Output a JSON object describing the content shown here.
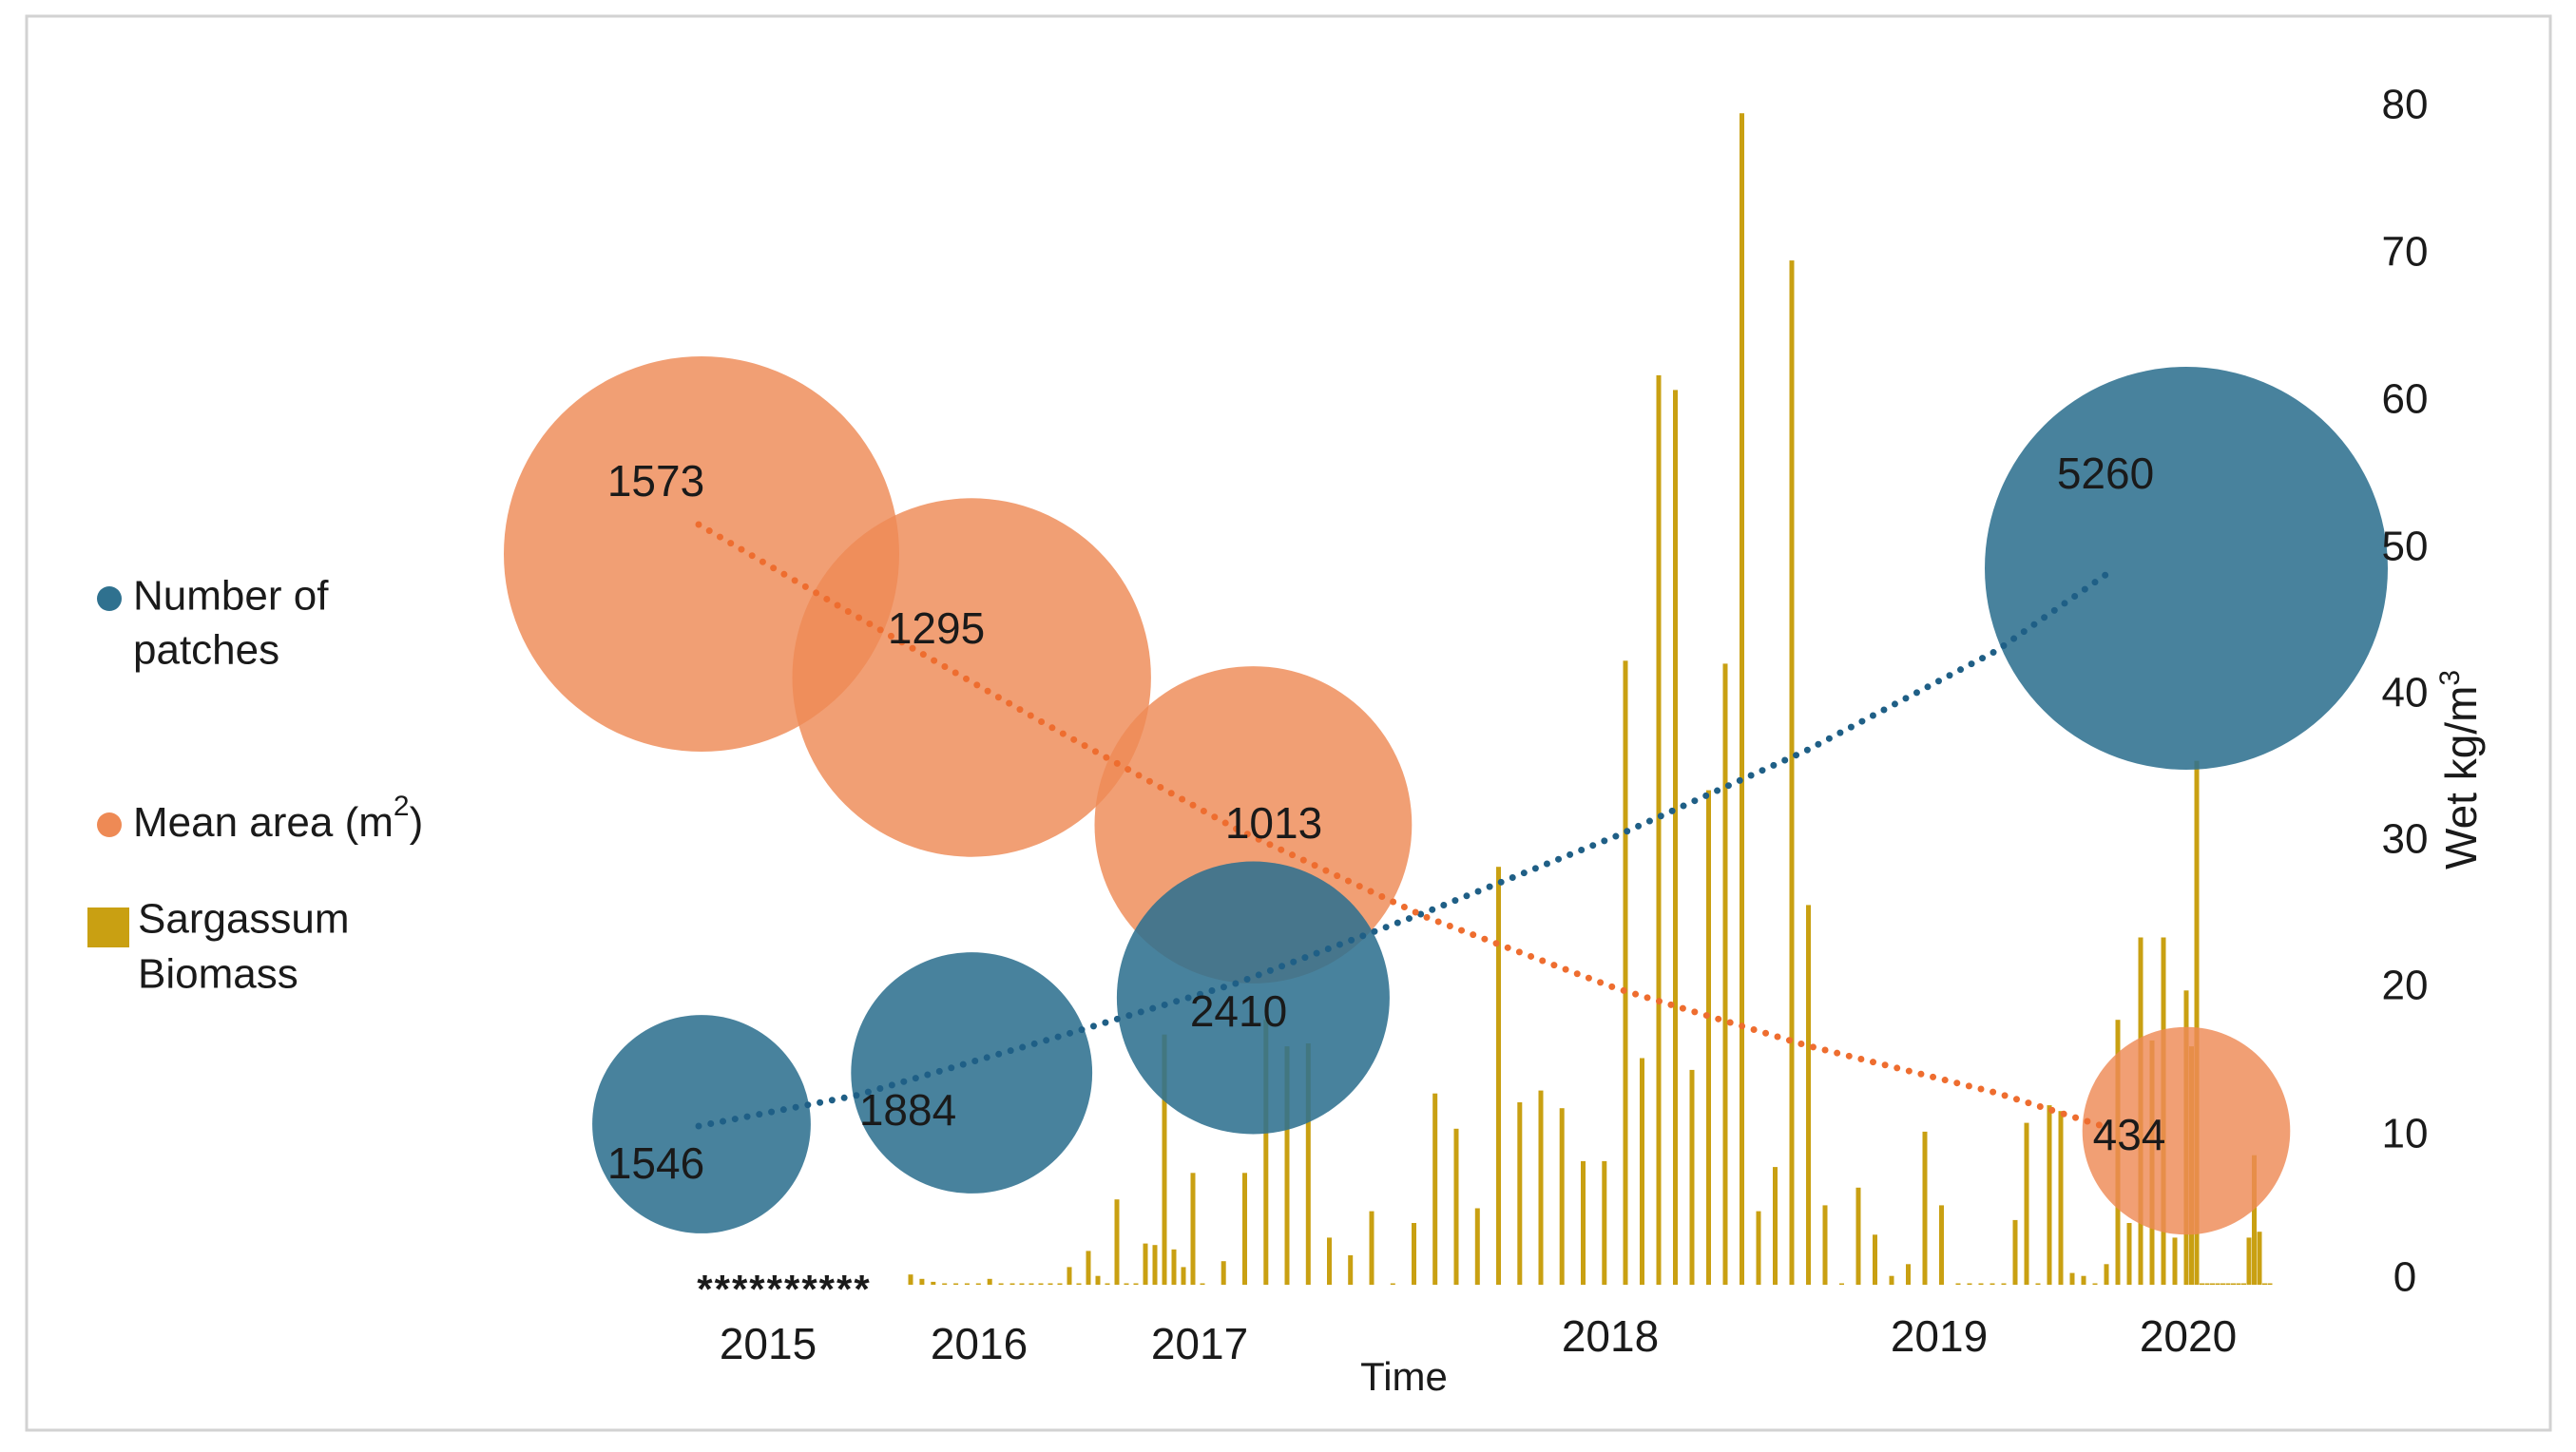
{
  "chart_data": {
    "type": "bubble-bar-combo",
    "xlabel": "Time",
    "ylabel_right": "Wet kg/m",
    "ylabel_right_sup": "3",
    "ylim_right": [
      0,
      80
    ],
    "y_ticks": [
      0,
      10,
      20,
      30,
      40,
      50,
      60,
      70,
      80
    ],
    "year_labels": [
      "2015",
      "2016",
      "2017",
      "2018",
      "2019",
      "2020"
    ],
    "missing_data_marker": "**********",
    "legend": {
      "patches_line1": "Number of",
      "patches_line2": "patches",
      "area_label": "Mean area (m",
      "area_sup": "2",
      "area_close": ")",
      "biomass_line1": "Sargassum",
      "biomass_line2": "Biomass"
    },
    "series_colors": {
      "patches": "#2f718f",
      "area": "#ee8a55",
      "biomass": "#c9a012"
    },
    "bubbles": {
      "number_of_patches": [
        {
          "t": 2015.0,
          "value": 1546,
          "label": "1546"
        },
        {
          "t": 2015.82,
          "value": 1884,
          "label": "1884"
        },
        {
          "t": 2017.12,
          "value": 2410,
          "label": "2410"
        },
        {
          "t": 2020.0,
          "value": 5260,
          "label": "5260"
        }
      ],
      "mean_area_m2": [
        {
          "t": 2015.0,
          "value": 1573,
          "label": "1573"
        },
        {
          "t": 2015.82,
          "value": 1295,
          "label": "1295"
        },
        {
          "t": 2017.12,
          "value": 1013,
          "label": "1013"
        },
        {
          "t": 2020.0,
          "value": 434,
          "label": "434"
        }
      ]
    },
    "biomass": {
      "t": [
        2015.55,
        2015.6,
        2015.65,
        2015.7,
        2015.75,
        2015.8,
        2015.85,
        2015.9,
        2015.95,
        2016.0,
        2016.05,
        2016.1,
        2016.15,
        2016.2,
        2016.25,
        2016.3,
        2016.35,
        2016.4,
        2016.45,
        2016.5,
        2016.55,
        2016.6,
        2016.65,
        2016.7,
        2016.75,
        2016.8,
        2016.85,
        2016.9,
        2016.95,
        2017.0,
        2017.05,
        2017.1,
        2017.15,
        2017.2,
        2017.25,
        2017.3,
        2017.35,
        2017.4,
        2017.45,
        2017.5,
        2017.55,
        2017.6,
        2017.65,
        2017.7,
        2017.75,
        2017.8,
        2017.85,
        2017.9,
        2017.95,
        2018.0,
        2018.05,
        2018.1,
        2018.15,
        2018.2,
        2018.25,
        2018.3,
        2018.35,
        2018.4,
        2018.45,
        2018.5,
        2018.55,
        2018.6,
        2018.65,
        2018.7,
        2018.75,
        2018.8,
        2018.85,
        2018.9,
        2018.95,
        2019.0,
        2019.05,
        2019.1,
        2019.15,
        2019.2,
        2019.25,
        2019.3,
        2019.35,
        2019.4,
        2019.45,
        2019.5,
        2019.55,
        2019.6,
        2019.65,
        2019.7,
        2019.75,
        2019.8,
        2019.85,
        2019.9,
        2019.95,
        2020.0,
        2020.05,
        2020.1,
        2020.15,
        2020.2,
        2020.25,
        2020.3,
        2020.35,
        2020.4,
        2020.45,
        2020.5,
        2020.55,
        2020.6,
        2020.65,
        2020.7,
        2020.75,
        2020.8
      ],
      "values": [
        0.7,
        0.4,
        0.2,
        0.1,
        0.1,
        0.1,
        0.1,
        0.4,
        0.1,
        0.1,
        0.1,
        0.1,
        0.1,
        0.1,
        0.1,
        1.2,
        0.1,
        2.3,
        0.6,
        0.1,
        5.8,
        0.1,
        0.1,
        2.8,
        2.7,
        17.0,
        2.4,
        1.2,
        7.6,
        0.1,
        1.6,
        7.6,
        18.0,
        16.2,
        16.4,
        3.2,
        2.0,
        5.0,
        0.1,
        4.2,
        13.0,
        10.6,
        5.2,
        28.4,
        12.4,
        13.2,
        12.0,
        8.4,
        8.4,
        42.4,
        15.4,
        61.8,
        60.8,
        14.6,
        33.6,
        42.2,
        79.6,
        5.0,
        8.0,
        69.6,
        25.8,
        5.4,
        0.1,
        6.6,
        3.4,
        0.6,
        1.4,
        10.4,
        5.4,
        0.1,
        0.1,
        0.1,
        0.1,
        0.1,
        4.4,
        11.0,
        0.1,
        12.2,
        11.8,
        0.8,
        0.6,
        0.1,
        1.4,
        18.0,
        4.2,
        23.6,
        16.6,
        23.6,
        3.2,
        20.0,
        16.2,
        35.6,
        0.1,
        0.1,
        0.1,
        0.1,
        0.1,
        0.1,
        0.1,
        0.1,
        0.1,
        3.2,
        8.8,
        3.6,
        0.1,
        0.1
      ]
    }
  }
}
